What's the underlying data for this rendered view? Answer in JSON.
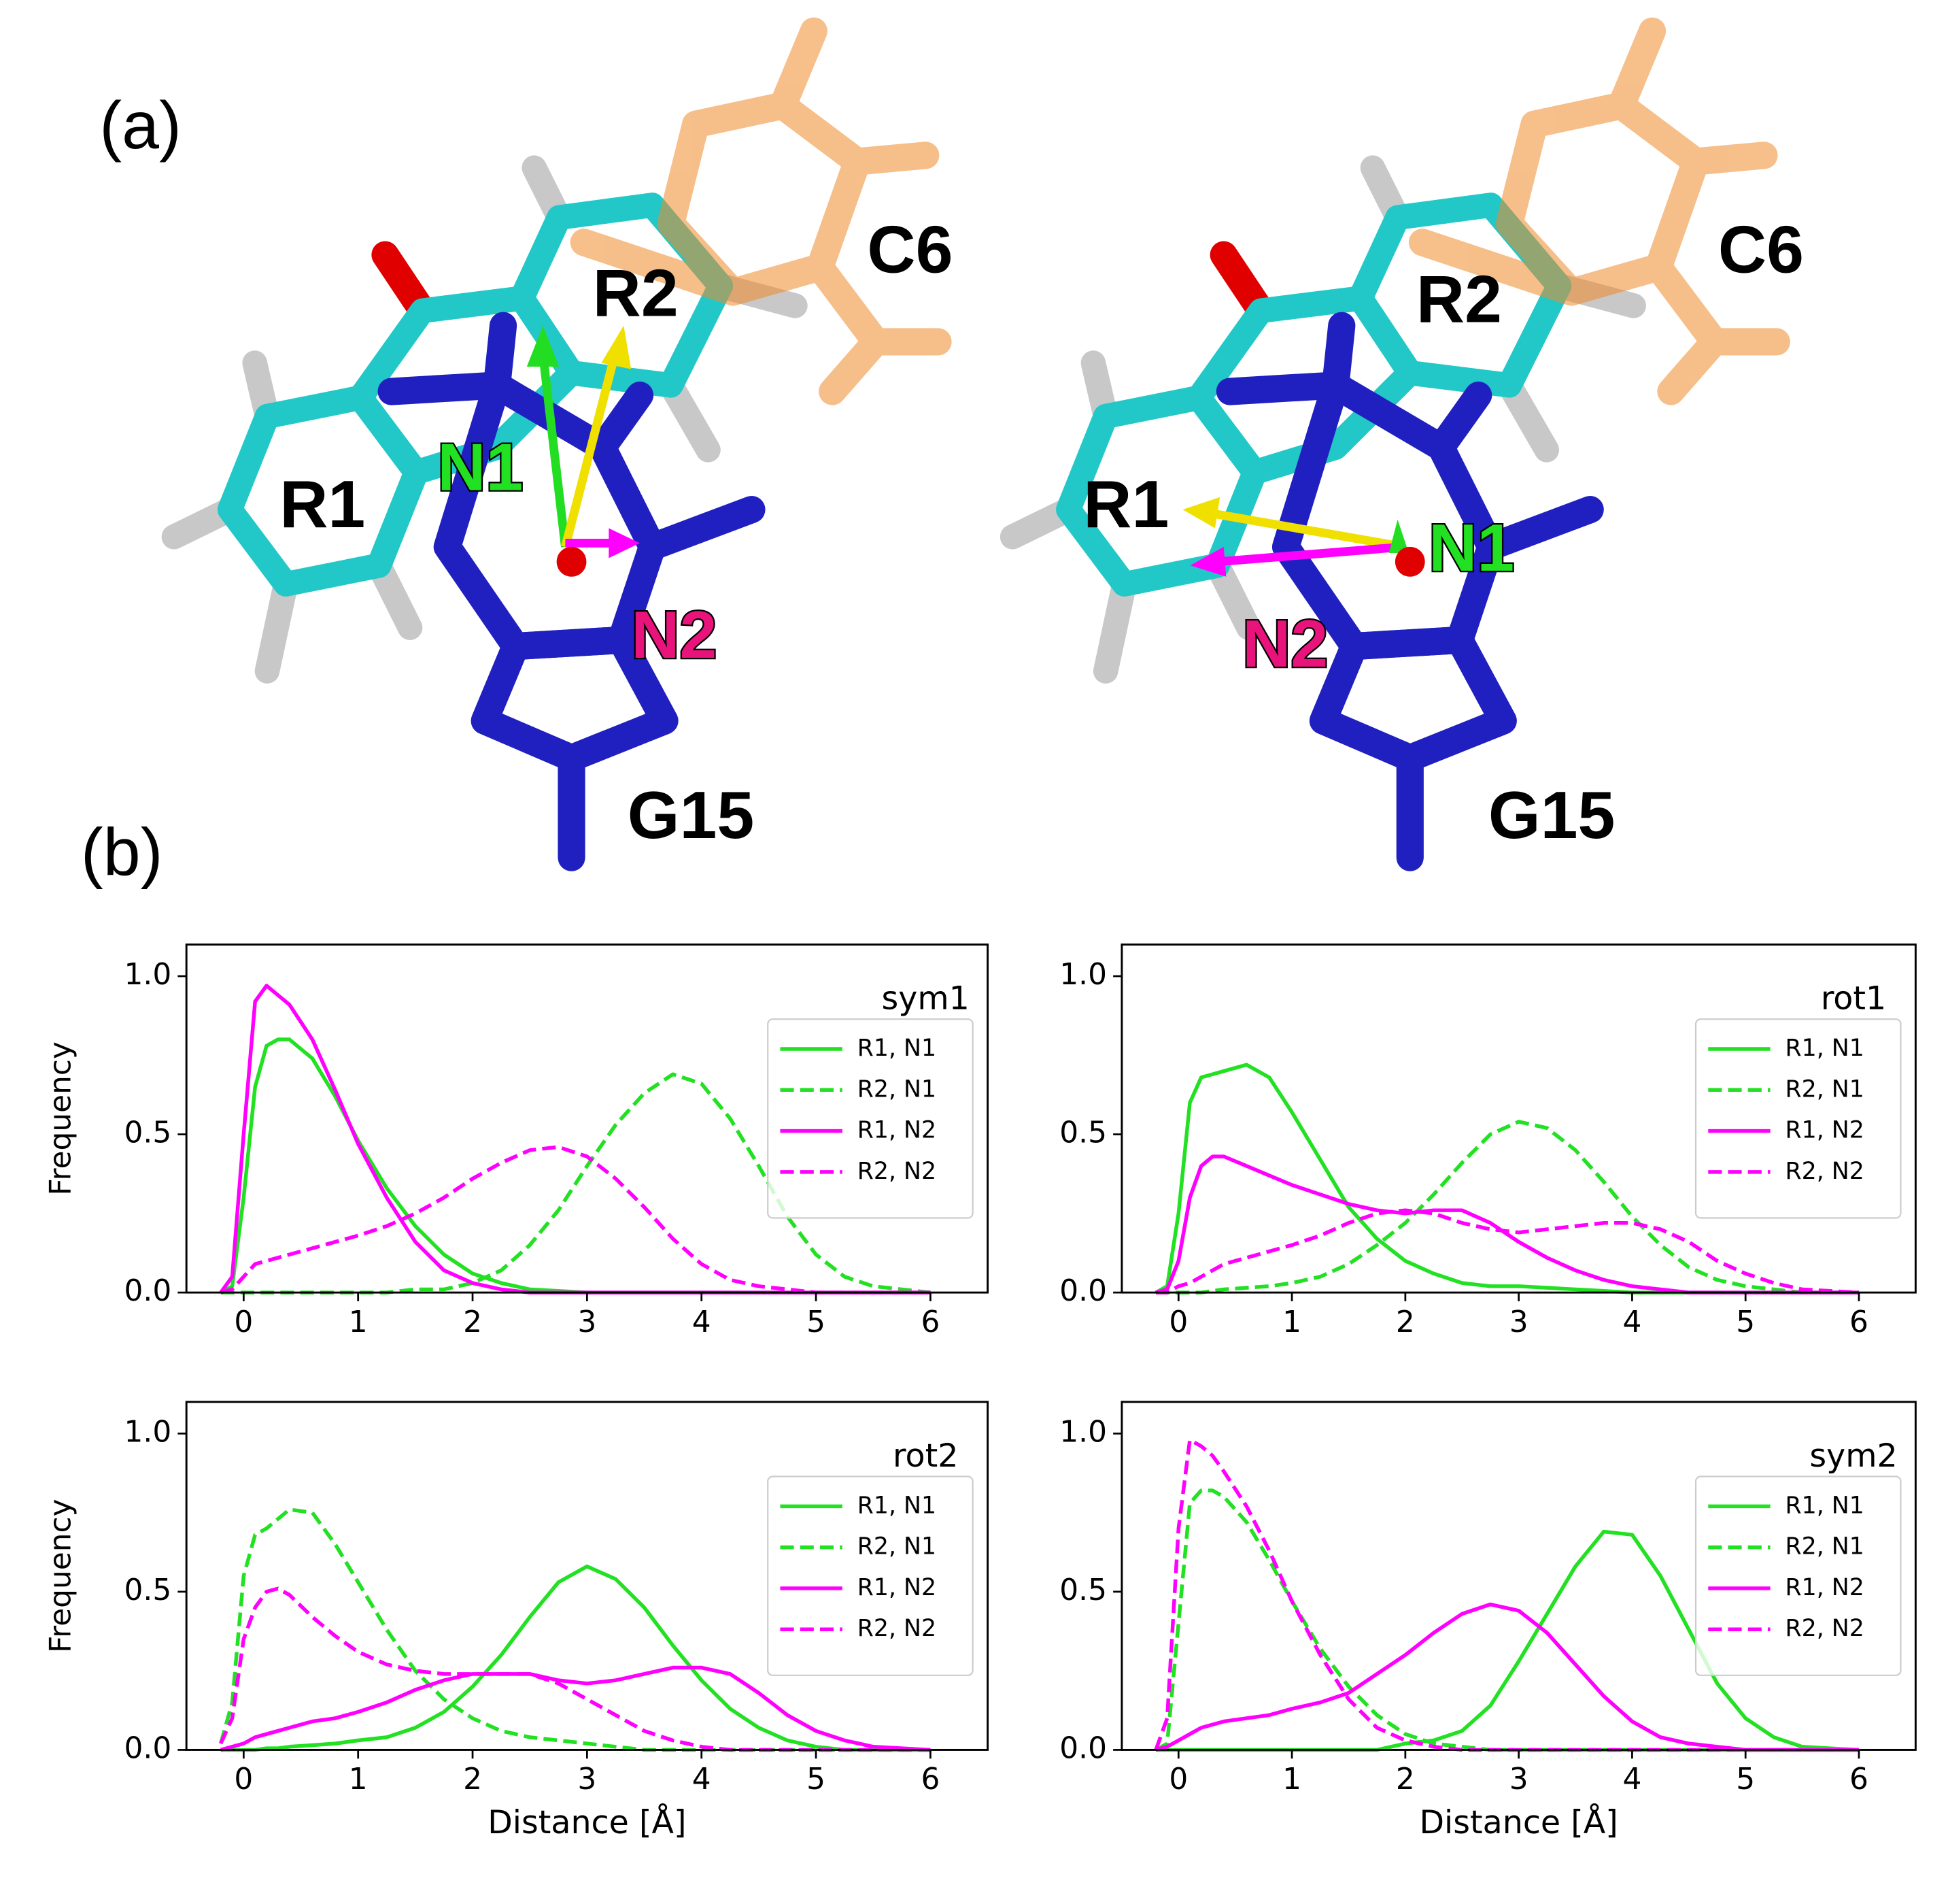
{
  "panel_a": {
    "label": "(a)",
    "structures": [
      {
        "labels": [
          "R1",
          "R2",
          "C6",
          "N1",
          "N2",
          "G15"
        ]
      },
      {
        "labels": [
          "R1",
          "R2",
          "C6",
          "N1",
          "N2",
          "G15"
        ]
      }
    ]
  },
  "panel_b": {
    "label": "(b)"
  },
  "chart_data": [
    {
      "type": "line",
      "legend_title": "sym1",
      "y_label": "Frequency",
      "legend": "upper right",
      "x": [
        -0.2,
        -0.1,
        0,
        0.1,
        0.2,
        0.3,
        0.4,
        0.6,
        0.8,
        1,
        1.25,
        1.5,
        1.75,
        2,
        2.25,
        2.5,
        2.75,
        3,
        3.25,
        3.5,
        3.75,
        4,
        4.25,
        4.5,
        4.75,
        5,
        5.25,
        5.5,
        6
      ],
      "xlim": [
        -0.5,
        6.5
      ],
      "xticks": [
        0,
        1,
        2,
        3,
        4,
        5,
        6
      ],
      "ylim": [
        0,
        1.1
      ],
      "yticks": [
        {
          "value": 0,
          "label": "0.0"
        },
        {
          "value": 0.5,
          "label": "0.5"
        },
        {
          "value": 1,
          "label": "1.0"
        }
      ],
      "series": [
        {
          "name": "R1, N1",
          "color": "#22e022",
          "dashed": false,
          "values": [
            0,
            0.02,
            0.3,
            0.65,
            0.78,
            0.8,
            0.8,
            0.74,
            0.62,
            0.48,
            0.33,
            0.21,
            0.12,
            0.06,
            0.03,
            0.01,
            0.005,
            0,
            0,
            0,
            0,
            0,
            0,
            0,
            0,
            0,
            0,
            0,
            0
          ]
        },
        {
          "name": "R2, N1",
          "color": "#22e022",
          "dashed": true,
          "values": [
            0,
            0,
            0,
            0,
            0,
            0,
            0,
            0,
            0,
            0,
            0,
            0.01,
            0.01,
            0.03,
            0.07,
            0.15,
            0.26,
            0.4,
            0.53,
            0.63,
            0.69,
            0.66,
            0.55,
            0.4,
            0.24,
            0.12,
            0.05,
            0.02,
            0
          ]
        },
        {
          "name": "R1, N2",
          "color": "#ff00ff",
          "dashed": false,
          "values": [
            0,
            0.05,
            0.5,
            0.92,
            0.97,
            0.94,
            0.91,
            0.8,
            0.64,
            0.47,
            0.3,
            0.16,
            0.07,
            0.03,
            0.01,
            0,
            0,
            0,
            0,
            0,
            0,
            0,
            0,
            0,
            0,
            0,
            0,
            0,
            0
          ]
        },
        {
          "name": "R2, N2",
          "color": "#ff00ff",
          "dashed": true,
          "values": [
            0,
            0.01,
            0.05,
            0.09,
            0.1,
            0.11,
            0.12,
            0.14,
            0.16,
            0.18,
            0.21,
            0.25,
            0.3,
            0.36,
            0.41,
            0.45,
            0.46,
            0.43,
            0.36,
            0.27,
            0.17,
            0.09,
            0.04,
            0.02,
            0.01,
            0,
            0,
            0,
            0
          ]
        }
      ]
    },
    {
      "type": "line",
      "legend_title": "rot1",
      "legend": "upper right",
      "x": [
        -0.2,
        -0.1,
        0,
        0.1,
        0.2,
        0.3,
        0.4,
        0.6,
        0.8,
        1,
        1.25,
        1.5,
        1.75,
        2,
        2.25,
        2.5,
        2.75,
        3,
        3.25,
        3.5,
        3.75,
        4,
        4.25,
        4.5,
        4.75,
        5,
        5.25,
        5.5,
        6
      ],
      "xlim": [
        -0.5,
        6.5
      ],
      "xticks": [
        0,
        1,
        2,
        3,
        4,
        5,
        6
      ],
      "ylim": [
        0,
        1.1
      ],
      "yticks": [
        {
          "value": 0,
          "label": "0.0"
        },
        {
          "value": 0.5,
          "label": "0.5"
        },
        {
          "value": 1,
          "label": "1.0"
        }
      ],
      "series": [
        {
          "name": "R1, N1",
          "color": "#22e022",
          "dashed": false,
          "values": [
            0,
            0.02,
            0.25,
            0.6,
            0.68,
            0.69,
            0.7,
            0.72,
            0.68,
            0.57,
            0.42,
            0.27,
            0.17,
            0.1,
            0.06,
            0.03,
            0.02,
            0.02,
            0.015,
            0.01,
            0.005,
            0,
            0,
            0,
            0,
            0,
            0,
            0,
            0
          ]
        },
        {
          "name": "R2, N1",
          "color": "#22e022",
          "dashed": true,
          "values": [
            0,
            0,
            0,
            0,
            0,
            0.005,
            0.01,
            0.015,
            0.02,
            0.03,
            0.05,
            0.09,
            0.15,
            0.22,
            0.31,
            0.41,
            0.5,
            0.54,
            0.52,
            0.45,
            0.35,
            0.24,
            0.15,
            0.08,
            0.04,
            0.02,
            0.01,
            0,
            0
          ]
        },
        {
          "name": "R1, N2",
          "color": "#ff00ff",
          "dashed": false,
          "values": [
            0,
            0.01,
            0.1,
            0.3,
            0.4,
            0.43,
            0.43,
            0.4,
            0.37,
            0.34,
            0.31,
            0.28,
            0.26,
            0.25,
            0.26,
            0.26,
            0.22,
            0.16,
            0.11,
            0.07,
            0.04,
            0.02,
            0.01,
            0,
            0,
            0,
            0,
            0,
            0
          ]
        },
        {
          "name": "R2, N2",
          "color": "#ff00ff",
          "dashed": true,
          "values": [
            0,
            0,
            0.02,
            0.03,
            0.05,
            0.07,
            0.09,
            0.11,
            0.13,
            0.15,
            0.18,
            0.22,
            0.25,
            0.26,
            0.25,
            0.22,
            0.2,
            0.19,
            0.2,
            0.21,
            0.22,
            0.22,
            0.2,
            0.16,
            0.1,
            0.06,
            0.03,
            0.01,
            0
          ]
        }
      ]
    },
    {
      "type": "line",
      "legend_title": "rot2",
      "y_label": "Frequency",
      "x_label": "Distance [Å]",
      "legend": "upper right",
      "x": [
        -0.2,
        -0.1,
        0,
        0.1,
        0.2,
        0.3,
        0.4,
        0.6,
        0.8,
        1,
        1.25,
        1.5,
        1.75,
        2,
        2.25,
        2.5,
        2.75,
        3,
        3.25,
        3.5,
        3.75,
        4,
        4.25,
        4.5,
        4.75,
        5,
        5.25,
        5.5,
        6
      ],
      "xlim": [
        -0.5,
        6.5
      ],
      "xticks": [
        0,
        1,
        2,
        3,
        4,
        5,
        6
      ],
      "ylim": [
        0,
        1.1
      ],
      "yticks": [
        {
          "value": 0,
          "label": "0.0"
        },
        {
          "value": 0.5,
          "label": "0.5"
        },
        {
          "value": 1,
          "label": "1.0"
        }
      ],
      "series": [
        {
          "name": "R1, N1",
          "color": "#22e022",
          "dashed": false,
          "values": [
            0,
            0,
            0,
            0,
            0.005,
            0.005,
            0.01,
            0.015,
            0.02,
            0.03,
            0.04,
            0.07,
            0.12,
            0.2,
            0.3,
            0.42,
            0.53,
            0.58,
            0.54,
            0.45,
            0.33,
            0.22,
            0.13,
            0.07,
            0.03,
            0.01,
            0,
            0,
            0
          ]
        },
        {
          "name": "R2, N1",
          "color": "#22e022",
          "dashed": true,
          "values": [
            0.02,
            0.15,
            0.55,
            0.68,
            0.7,
            0.73,
            0.76,
            0.75,
            0.65,
            0.53,
            0.38,
            0.25,
            0.16,
            0.1,
            0.06,
            0.04,
            0.03,
            0.02,
            0.01,
            0,
            0,
            0,
            0,
            0,
            0,
            0,
            0,
            0,
            0
          ]
        },
        {
          "name": "R1, N2",
          "color": "#ff00ff",
          "dashed": false,
          "values": [
            0,
            0.01,
            0.02,
            0.04,
            0.05,
            0.06,
            0.07,
            0.09,
            0.1,
            0.12,
            0.15,
            0.19,
            0.22,
            0.24,
            0.24,
            0.24,
            0.22,
            0.21,
            0.22,
            0.24,
            0.26,
            0.26,
            0.24,
            0.18,
            0.11,
            0.06,
            0.03,
            0.01,
            0
          ]
        },
        {
          "name": "R2, N2",
          "color": "#ff00ff",
          "dashed": true,
          "values": [
            0.02,
            0.1,
            0.35,
            0.45,
            0.5,
            0.51,
            0.49,
            0.42,
            0.36,
            0.31,
            0.27,
            0.25,
            0.24,
            0.24,
            0.24,
            0.24,
            0.21,
            0.16,
            0.11,
            0.06,
            0.03,
            0.01,
            0,
            0,
            0,
            0,
            0,
            0,
            0
          ]
        }
      ]
    },
    {
      "type": "line",
      "legend_title": "sym2",
      "x_label": "Distance [Å]",
      "legend": "upper right",
      "x": [
        -0.2,
        -0.1,
        0,
        0.1,
        0.2,
        0.3,
        0.4,
        0.6,
        0.8,
        1,
        1.25,
        1.5,
        1.75,
        2,
        2.25,
        2.5,
        2.75,
        3,
        3.25,
        3.5,
        3.75,
        4,
        4.25,
        4.5,
        4.75,
        5,
        5.25,
        5.5,
        6
      ],
      "xlim": [
        -0.5,
        6.5
      ],
      "xticks": [
        0,
        1,
        2,
        3,
        4,
        5,
        6
      ],
      "ylim": [
        0,
        1.1
      ],
      "yticks": [
        {
          "value": 0,
          "label": "0.0"
        },
        {
          "value": 0.5,
          "label": "0.5"
        },
        {
          "value": 1,
          "label": "1.0"
        }
      ],
      "series": [
        {
          "name": "R1, N1",
          "color": "#22e022",
          "dashed": false,
          "values": [
            0,
            0,
            0,
            0,
            0,
            0,
            0,
            0,
            0,
            0,
            0,
            0,
            0,
            0.02,
            0.03,
            0.06,
            0.14,
            0.28,
            0.43,
            0.58,
            0.69,
            0.68,
            0.55,
            0.38,
            0.21,
            0.1,
            0.04,
            0.01,
            0
          ]
        },
        {
          "name": "R2, N1",
          "color": "#22e022",
          "dashed": true,
          "values": [
            0,
            0.02,
            0.4,
            0.78,
            0.82,
            0.82,
            0.8,
            0.72,
            0.6,
            0.47,
            0.32,
            0.2,
            0.11,
            0.05,
            0.02,
            0.01,
            0,
            0,
            0,
            0,
            0,
            0,
            0,
            0,
            0,
            0,
            0,
            0,
            0
          ]
        },
        {
          "name": "R1, N2",
          "color": "#ff00ff",
          "dashed": false,
          "values": [
            0,
            0.01,
            0.03,
            0.05,
            0.07,
            0.08,
            0.09,
            0.1,
            0.11,
            0.13,
            0.15,
            0.18,
            0.24,
            0.3,
            0.37,
            0.43,
            0.46,
            0.44,
            0.37,
            0.27,
            0.17,
            0.09,
            0.04,
            0.02,
            0.01,
            0,
            0,
            0,
            0
          ]
        },
        {
          "name": "R2, N2",
          "color": "#ff00ff",
          "dashed": true,
          "values": [
            0,
            0.1,
            0.7,
            0.98,
            0.96,
            0.93,
            0.88,
            0.77,
            0.63,
            0.47,
            0.3,
            0.16,
            0.07,
            0.03,
            0.01,
            0,
            0,
            0,
            0,
            0,
            0,
            0,
            0,
            0,
            0,
            0,
            0,
            0,
            0
          ]
        }
      ]
    }
  ]
}
